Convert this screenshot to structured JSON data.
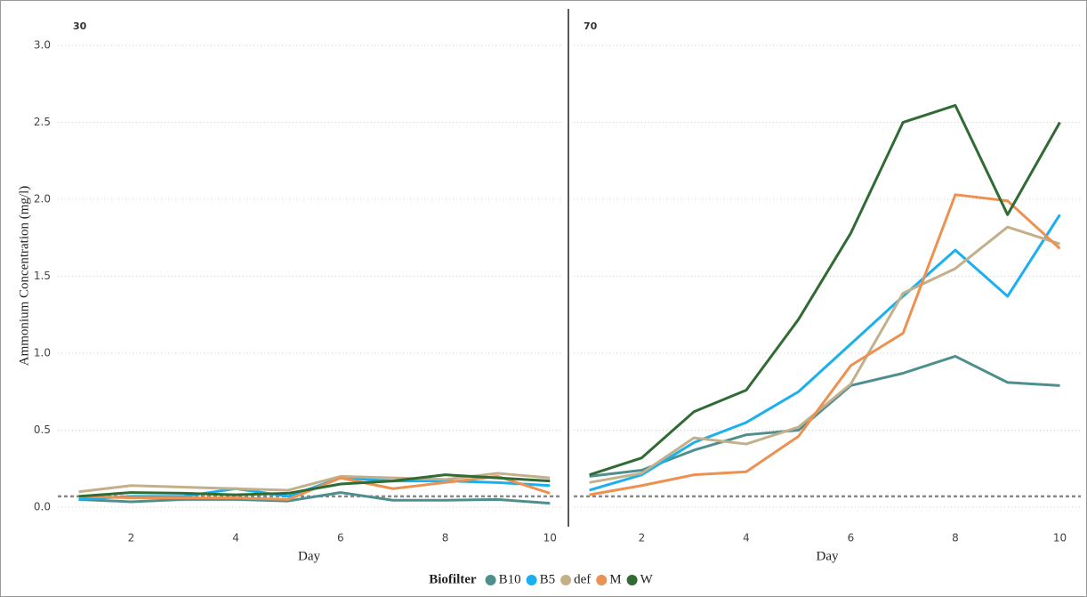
{
  "chart_data": [
    {
      "type": "line",
      "title": "30",
      "xlabel": "Day",
      "ylabel": "Ammonium Concentration (mg/l)",
      "legend_title": "Biofilter",
      "x": [
        1,
        2,
        3,
        4,
        5,
        6,
        7,
        8,
        9,
        10
      ],
      "xlim": [
        0.6,
        10.2
      ],
      "xticks": [
        2,
        4,
        6,
        8,
        10
      ],
      "ylim": [
        0,
        3
      ],
      "yticks": [
        {
          "value": 0,
          "label": "0.0"
        },
        0.5,
        {
          "value": 1,
          "label": "1.0"
        },
        1.5,
        {
          "value": 2,
          "label": "2.0"
        },
        2.5,
        {
          "value": 3,
          "label": "3.0"
        }
      ],
      "grid": true,
      "reference_line": 0.07,
      "series": [
        {
          "name": "B10",
          "color": "#4e8f8e",
          "values": [
            0.05,
            0.035,
            0.05,
            0.05,
            0.04,
            0.095,
            0.045,
            0.045,
            0.05,
            0.025
          ]
        },
        {
          "name": "B5",
          "color": "#1ab0f0",
          "values": [
            0.05,
            0.07,
            0.07,
            0.12,
            0.07,
            0.19,
            0.17,
            0.17,
            0.16,
            0.14
          ]
        },
        {
          "name": "def",
          "color": "#c3b08a",
          "values": [
            0.1,
            0.14,
            0.13,
            0.12,
            0.11,
            0.2,
            0.19,
            0.18,
            0.22,
            0.19
          ]
        },
        {
          "name": "M",
          "color": "#ec9152",
          "values": [
            0.07,
            0.06,
            0.06,
            0.06,
            0.05,
            0.19,
            0.12,
            0.16,
            0.2,
            0.09
          ]
        },
        {
          "name": "W",
          "color": "#306b34",
          "values": [
            0.07,
            0.095,
            0.09,
            0.08,
            0.09,
            0.15,
            0.17,
            0.21,
            0.19,
            0.17
          ]
        }
      ]
    },
    {
      "type": "line",
      "title": "70",
      "xlabel": "Day",
      "x": [
        1,
        2,
        3,
        4,
        5,
        6,
        7,
        8,
        9,
        10
      ],
      "xlim": [
        0.7,
        10.4
      ],
      "xticks": [
        2,
        4,
        6,
        8,
        10
      ],
      "ylim": [
        0,
        3
      ],
      "yticks": [
        0,
        0.5,
        1,
        1.5,
        2,
        2.5,
        3
      ],
      "grid": true,
      "reference_line": 0.07,
      "series": [
        {
          "name": "B10",
          "color": "#4e8f8e",
          "values": [
            0.2,
            0.24,
            0.37,
            0.47,
            0.5,
            0.79,
            0.87,
            0.98,
            0.81,
            0.79
          ]
        },
        {
          "name": "B5",
          "color": "#1ab0f0",
          "values": [
            0.11,
            0.21,
            0.42,
            0.55,
            0.75,
            1.06,
            1.37,
            1.67,
            1.37,
            1.9
          ]
        },
        {
          "name": "def",
          "color": "#c3b08a",
          "values": [
            0.16,
            0.22,
            0.45,
            0.41,
            0.52,
            0.8,
            1.39,
            1.55,
            1.82,
            1.71
          ]
        },
        {
          "name": "M",
          "color": "#ec9152",
          "values": [
            0.08,
            0.14,
            0.21,
            0.23,
            0.46,
            0.92,
            1.13,
            2.03,
            1.99,
            1.68
          ]
        },
        {
          "name": "W",
          "color": "#306b34",
          "values": [
            0.21,
            0.32,
            0.62,
            0.76,
            1.22,
            1.78,
            2.5,
            2.61,
            1.9,
            2.5
          ]
        }
      ]
    }
  ]
}
